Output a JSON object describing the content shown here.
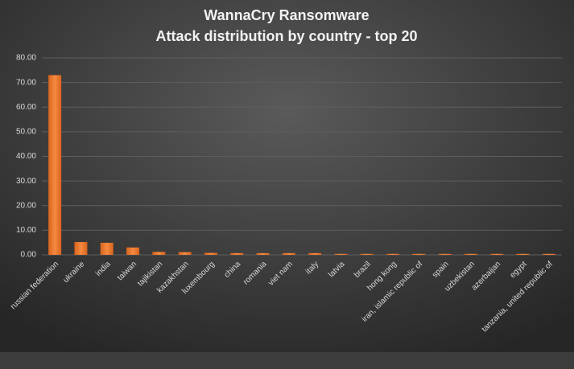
{
  "chart_data": {
    "type": "bar",
    "title": [
      "WannaCry  Ransomware",
      "Attack distribution  by country  - top 20"
    ],
    "categories": [
      "russian federation",
      "ukraine",
      "india",
      "taiwan",
      "tajikistan",
      "kazakhstan",
      "luxembourg",
      "china",
      "romania",
      "viet nam",
      "italy",
      "latvia",
      "brazil",
      "hong kong",
      "iran, islamic republic of",
      "spain",
      "uzbekistan",
      "azerbaijan",
      "egypt",
      "tanzania, united republic of"
    ],
    "values": [
      73,
      5.2,
      4.9,
      3.0,
      1.2,
      1.1,
      0.8,
      0.7,
      0.7,
      0.7,
      0.7,
      0.4,
      0.4,
      0.4,
      0.4,
      0.4,
      0.4,
      0.4,
      0.4,
      0.4
    ],
    "color": "#ef7d32",
    "ylim": [
      0,
      80
    ],
    "yticks": [
      {
        "value": 0,
        "label": "0.00"
      },
      {
        "value": 10,
        "label": "10.00"
      },
      {
        "value": 20,
        "label": "20.00"
      },
      {
        "value": 30,
        "label": "30.00"
      },
      {
        "value": 40,
        "label": "40.00"
      },
      {
        "value": 50,
        "label": "50.00"
      },
      {
        "value": 60,
        "label": "60.00"
      },
      {
        "value": 70,
        "label": "70.00"
      },
      {
        "value": 80,
        "label": "80.00"
      }
    ],
    "grid": true
  }
}
